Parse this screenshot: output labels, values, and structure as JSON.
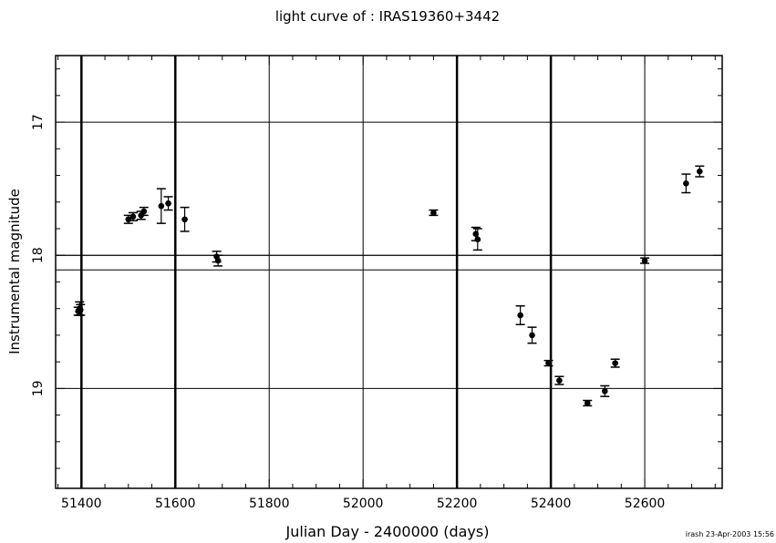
{
  "chart_data": {
    "type": "scatter",
    "title": "light curve of : IRAS19360+3442",
    "xlabel": "Julian Day - 2400000 (days)",
    "ylabel": "Instrumental magnitude",
    "footer": "irash 23-Apr-2003 15:56",
    "xlim": [
      51345,
      52765
    ],
    "ylim": [
      19.75,
      16.5
    ],
    "x_ticks": [
      51400,
      51600,
      51800,
      52000,
      52200,
      52400,
      52600
    ],
    "x_tick_labels": [
      "51400",
      "51600",
      "51800",
      "52000",
      "52200",
      "52400",
      "52600"
    ],
    "y_ticks": [
      17,
      18,
      19
    ],
    "y_tick_labels": [
      "17",
      "18",
      "19"
    ],
    "grid": true,
    "vertical_markers": [
      51400,
      51600,
      52200,
      52400
    ],
    "horizontal_lines": [
      18.0,
      18.11
    ],
    "series": [
      {
        "points": [
          {
            "x": 51393,
            "y": 18.42,
            "err": 0.03
          },
          {
            "x": 51396,
            "y": 18.4,
            "err": 0.05
          },
          {
            "x": 51398,
            "y": 18.41,
            "err": 0.04
          },
          {
            "x": 51500,
            "y": 17.73,
            "err": 0.03
          },
          {
            "x": 51510,
            "y": 17.71,
            "err": 0.03
          },
          {
            "x": 51527,
            "y": 17.7,
            "err": 0.03
          },
          {
            "x": 51533,
            "y": 17.67,
            "err": 0.03
          },
          {
            "x": 51570,
            "y": 17.63,
            "err": 0.13
          },
          {
            "x": 51585,
            "y": 17.61,
            "err": 0.05
          },
          {
            "x": 51620,
            "y": 17.73,
            "err": 0.09
          },
          {
            "x": 51688,
            "y": 18.01,
            "err": 0.04
          },
          {
            "x": 51691,
            "y": 18.04,
            "err": 0.04
          },
          {
            "x": 52150,
            "y": 17.68,
            "err": 0.02
          },
          {
            "x": 52240,
            "y": 17.84,
            "err": 0.05
          },
          {
            "x": 52244,
            "y": 17.88,
            "err": 0.08
          },
          {
            "x": 52335,
            "y": 18.45,
            "err": 0.07
          },
          {
            "x": 52360,
            "y": 18.6,
            "err": 0.06
          },
          {
            "x": 52395,
            "y": 18.81,
            "err": 0.02
          },
          {
            "x": 52418,
            "y": 18.94,
            "err": 0.03
          },
          {
            "x": 52478,
            "y": 19.11,
            "err": 0.02
          },
          {
            "x": 52515,
            "y": 19.02,
            "err": 0.04
          },
          {
            "x": 52537,
            "y": 18.81,
            "err": 0.03
          },
          {
            "x": 52600,
            "y": 18.04,
            "err": 0.02
          },
          {
            "x": 52688,
            "y": 17.46,
            "err": 0.07
          },
          {
            "x": 52717,
            "y": 17.37,
            "err": 0.04
          }
        ]
      }
    ]
  }
}
